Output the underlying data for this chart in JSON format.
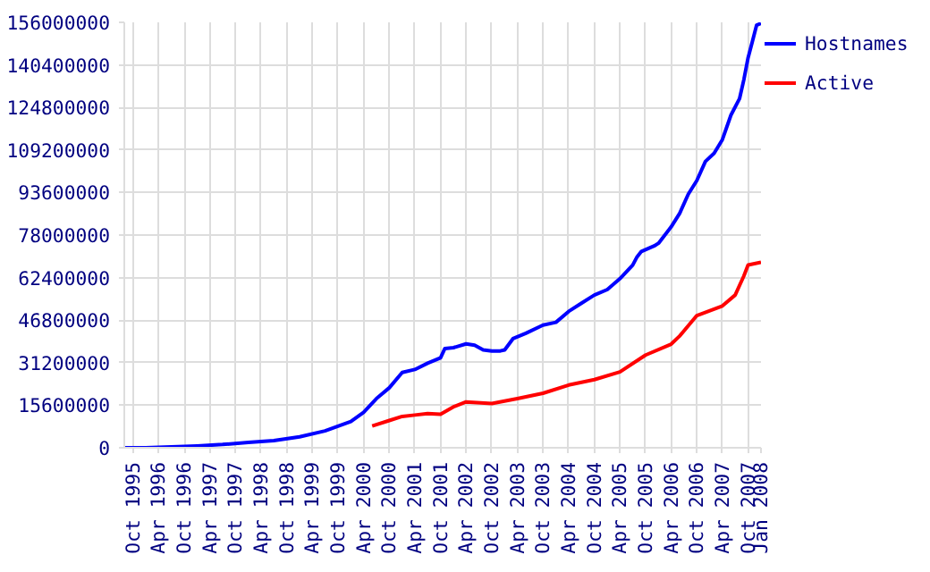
{
  "chart_data": {
    "type": "line",
    "xlim": [
      "1995-08",
      "2008-01"
    ],
    "xticks": [
      {
        "value": "1995-10",
        "label": "Oct 1995"
      },
      {
        "value": "1996-04",
        "label": "Apr 1996"
      },
      {
        "value": "1996-10",
        "label": "Oct 1996"
      },
      {
        "value": "1997-04",
        "label": "Apr 1997"
      },
      {
        "value": "1997-10",
        "label": "Oct 1997"
      },
      {
        "value": "1998-04",
        "label": "Apr 1998"
      },
      {
        "value": "1998-10",
        "label": "Oct 1998"
      },
      {
        "value": "1999-04",
        "label": "Apr 1999"
      },
      {
        "value": "1999-10",
        "label": "Oct 1999"
      },
      {
        "value": "2000-04",
        "label": "Apr 2000"
      },
      {
        "value": "2000-10",
        "label": "Oct 2000"
      },
      {
        "value": "2001-04",
        "label": "Apr 2001"
      },
      {
        "value": "2001-10",
        "label": "Oct 2001"
      },
      {
        "value": "2002-04",
        "label": "Apr 2002"
      },
      {
        "value": "2002-10",
        "label": "Oct 2002"
      },
      {
        "value": "2003-04",
        "label": "Apr 2003"
      },
      {
        "value": "2003-10",
        "label": "Oct 2003"
      },
      {
        "value": "2004-04",
        "label": "Apr 2004"
      },
      {
        "value": "2004-10",
        "label": "Oct 2004"
      },
      {
        "value": "2005-04",
        "label": "Apr 2005"
      },
      {
        "value": "2005-10",
        "label": "Oct 2005"
      },
      {
        "value": "2006-04",
        "label": "Apr 2006"
      },
      {
        "value": "2006-10",
        "label": "Oct 2006"
      },
      {
        "value": "2007-04",
        "label": "Apr 2007"
      },
      {
        "value": "2007-10",
        "label": "Oct 2007"
      },
      {
        "value": "2008-01",
        "label": "Jan 2008"
      }
    ],
    "ylim": [
      0,
      156000000
    ],
    "yticks": [
      0,
      15600000,
      31200000,
      46800000,
      62400000,
      78000000,
      93600000,
      109200000,
      124800000,
      140400000,
      156000000
    ],
    "grid": true,
    "legend": "right",
    "series": [
      {
        "name": "Hostnames",
        "color": "#0000ff",
        "x": [
          "1995-08",
          "1996-01",
          "1996-07",
          "1997-01",
          "1997-07",
          "1998-01",
          "1998-07",
          "1999-01",
          "1999-07",
          "2000-01",
          "2000-04",
          "2000-07",
          "2000-10",
          "2001-01",
          "2001-04",
          "2001-07",
          "2001-10",
          "2001-11",
          "2002-01",
          "2002-04",
          "2002-06",
          "2002-08",
          "2002-10",
          "2002-12",
          "2003-01",
          "2003-03",
          "2003-06",
          "2003-10",
          "2004-01",
          "2004-04",
          "2004-07",
          "2004-10",
          "2005-01",
          "2005-04",
          "2005-07",
          "2005-08",
          "2005-09",
          "2005-12",
          "2006-01",
          "2006-04",
          "2006-06",
          "2006-08",
          "2006-10",
          "2006-12",
          "2007-02",
          "2007-04",
          "2007-06",
          "2007-08",
          "2007-09",
          "2007-10",
          "2007-11",
          "2007-12",
          "2008-01"
        ],
        "values": [
          0,
          0,
          300000,
          650000,
          1200000,
          2000000,
          2600000,
          4000000,
          6200000,
          9600000,
          13000000,
          18000000,
          22000000,
          27600000,
          28700000,
          31000000,
          33000000,
          36400000,
          36700000,
          38100000,
          37600000,
          35900000,
          35500000,
          35500000,
          35900000,
          40000000,
          42000000,
          45000000,
          46000000,
          50000000,
          53000000,
          56000000,
          58000000,
          62000000,
          67000000,
          70000000,
          72000000,
          74000000,
          75000000,
          81000000,
          86000000,
          93000000,
          98000000,
          105000000,
          108000000,
          113000000,
          122000000,
          128000000,
          135000000,
          143000000,
          149000000,
          155000000,
          155600000
        ]
      },
      {
        "name": "Active",
        "color": "#ff0000",
        "x": [
          "2000-06",
          "2000-10",
          "2001-01",
          "2001-04",
          "2001-07",
          "2001-10",
          "2002-01",
          "2002-04",
          "2002-10",
          "2003-04",
          "2003-10",
          "2004-04",
          "2004-10",
          "2005-04",
          "2005-10",
          "2006-04",
          "2006-06",
          "2006-10",
          "2007-04",
          "2007-07",
          "2007-09",
          "2007-10",
          "2008-01"
        ],
        "values": [
          8000000,
          10000000,
          11500000,
          12000000,
          12500000,
          12300000,
          15000000,
          16800000,
          16200000,
          18000000,
          20000000,
          23000000,
          25000000,
          27800000,
          34000000,
          38000000,
          41000000,
          48500000,
          52000000,
          56000000,
          63000000,
          67000000,
          68000000
        ]
      }
    ]
  }
}
